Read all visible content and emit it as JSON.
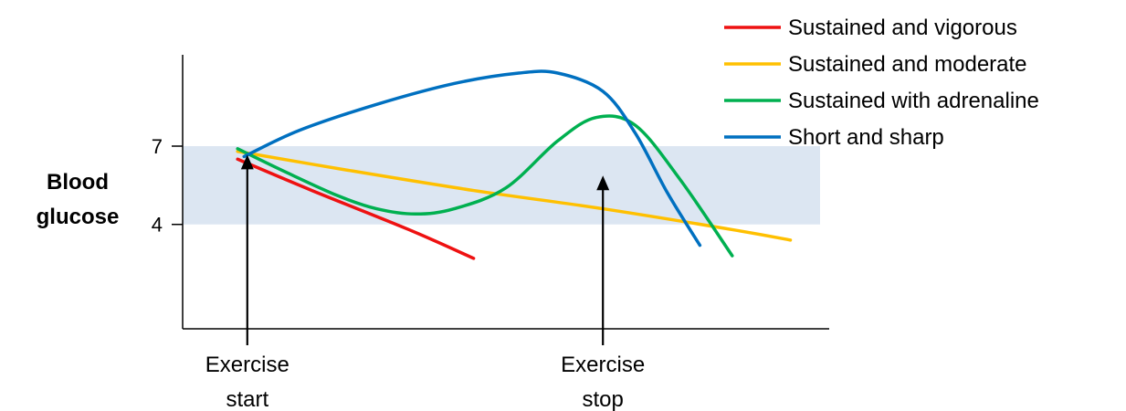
{
  "chart_data": {
    "type": "line",
    "title": "",
    "xlabel": "",
    "ylabel": "Blood glucose",
    "ylabel_lines": [
      "Blood",
      "glucose"
    ],
    "xlim": [
      0,
      100
    ],
    "ylim": [
      0,
      10.5
    ],
    "yticks": [
      4,
      7
    ],
    "target_band": [
      4,
      7
    ],
    "grid": false,
    "legend_position": "top-right",
    "annotations": [
      {
        "id": "start",
        "lines": [
          "Exercise",
          "start"
        ],
        "x": 10,
        "arrow_to_y": 6.6
      },
      {
        "id": "stop",
        "lines": [
          "Exercise",
          "stop"
        ],
        "x": 65,
        "arrow_to_y": 5.8
      }
    ],
    "series": [
      {
        "name": "Sustained and vigorous",
        "color": "#ee1111",
        "x": [
          8.5,
          20,
          35,
          45
        ],
        "y": [
          6.5,
          5.3,
          3.8,
          2.7
        ]
      },
      {
        "name": "Sustained and moderate",
        "color": "#ffc000",
        "x": [
          8.5,
          25,
          45,
          65,
          85,
          94
        ],
        "y": [
          6.8,
          6.1,
          5.3,
          4.6,
          3.8,
          3.4
        ]
      },
      {
        "name": "Sustained with adrenaline",
        "color": "#00b050",
        "x": [
          8.5,
          16,
          24,
          30,
          36,
          42,
          50,
          58,
          64,
          70,
          77,
          85
        ],
        "y": [
          6.9,
          6.0,
          5.1,
          4.6,
          4.4,
          4.6,
          5.4,
          7.2,
          8.1,
          7.8,
          5.7,
          2.8
        ]
      },
      {
        "name": "Short and sharp",
        "color": "#0070c0",
        "x": [
          9.5,
          18,
          30,
          42,
          52,
          58,
          65,
          70,
          75,
          80
        ],
        "y": [
          6.6,
          7.6,
          8.6,
          9.4,
          9.8,
          9.8,
          9.1,
          7.5,
          5.2,
          3.2
        ]
      }
    ]
  }
}
